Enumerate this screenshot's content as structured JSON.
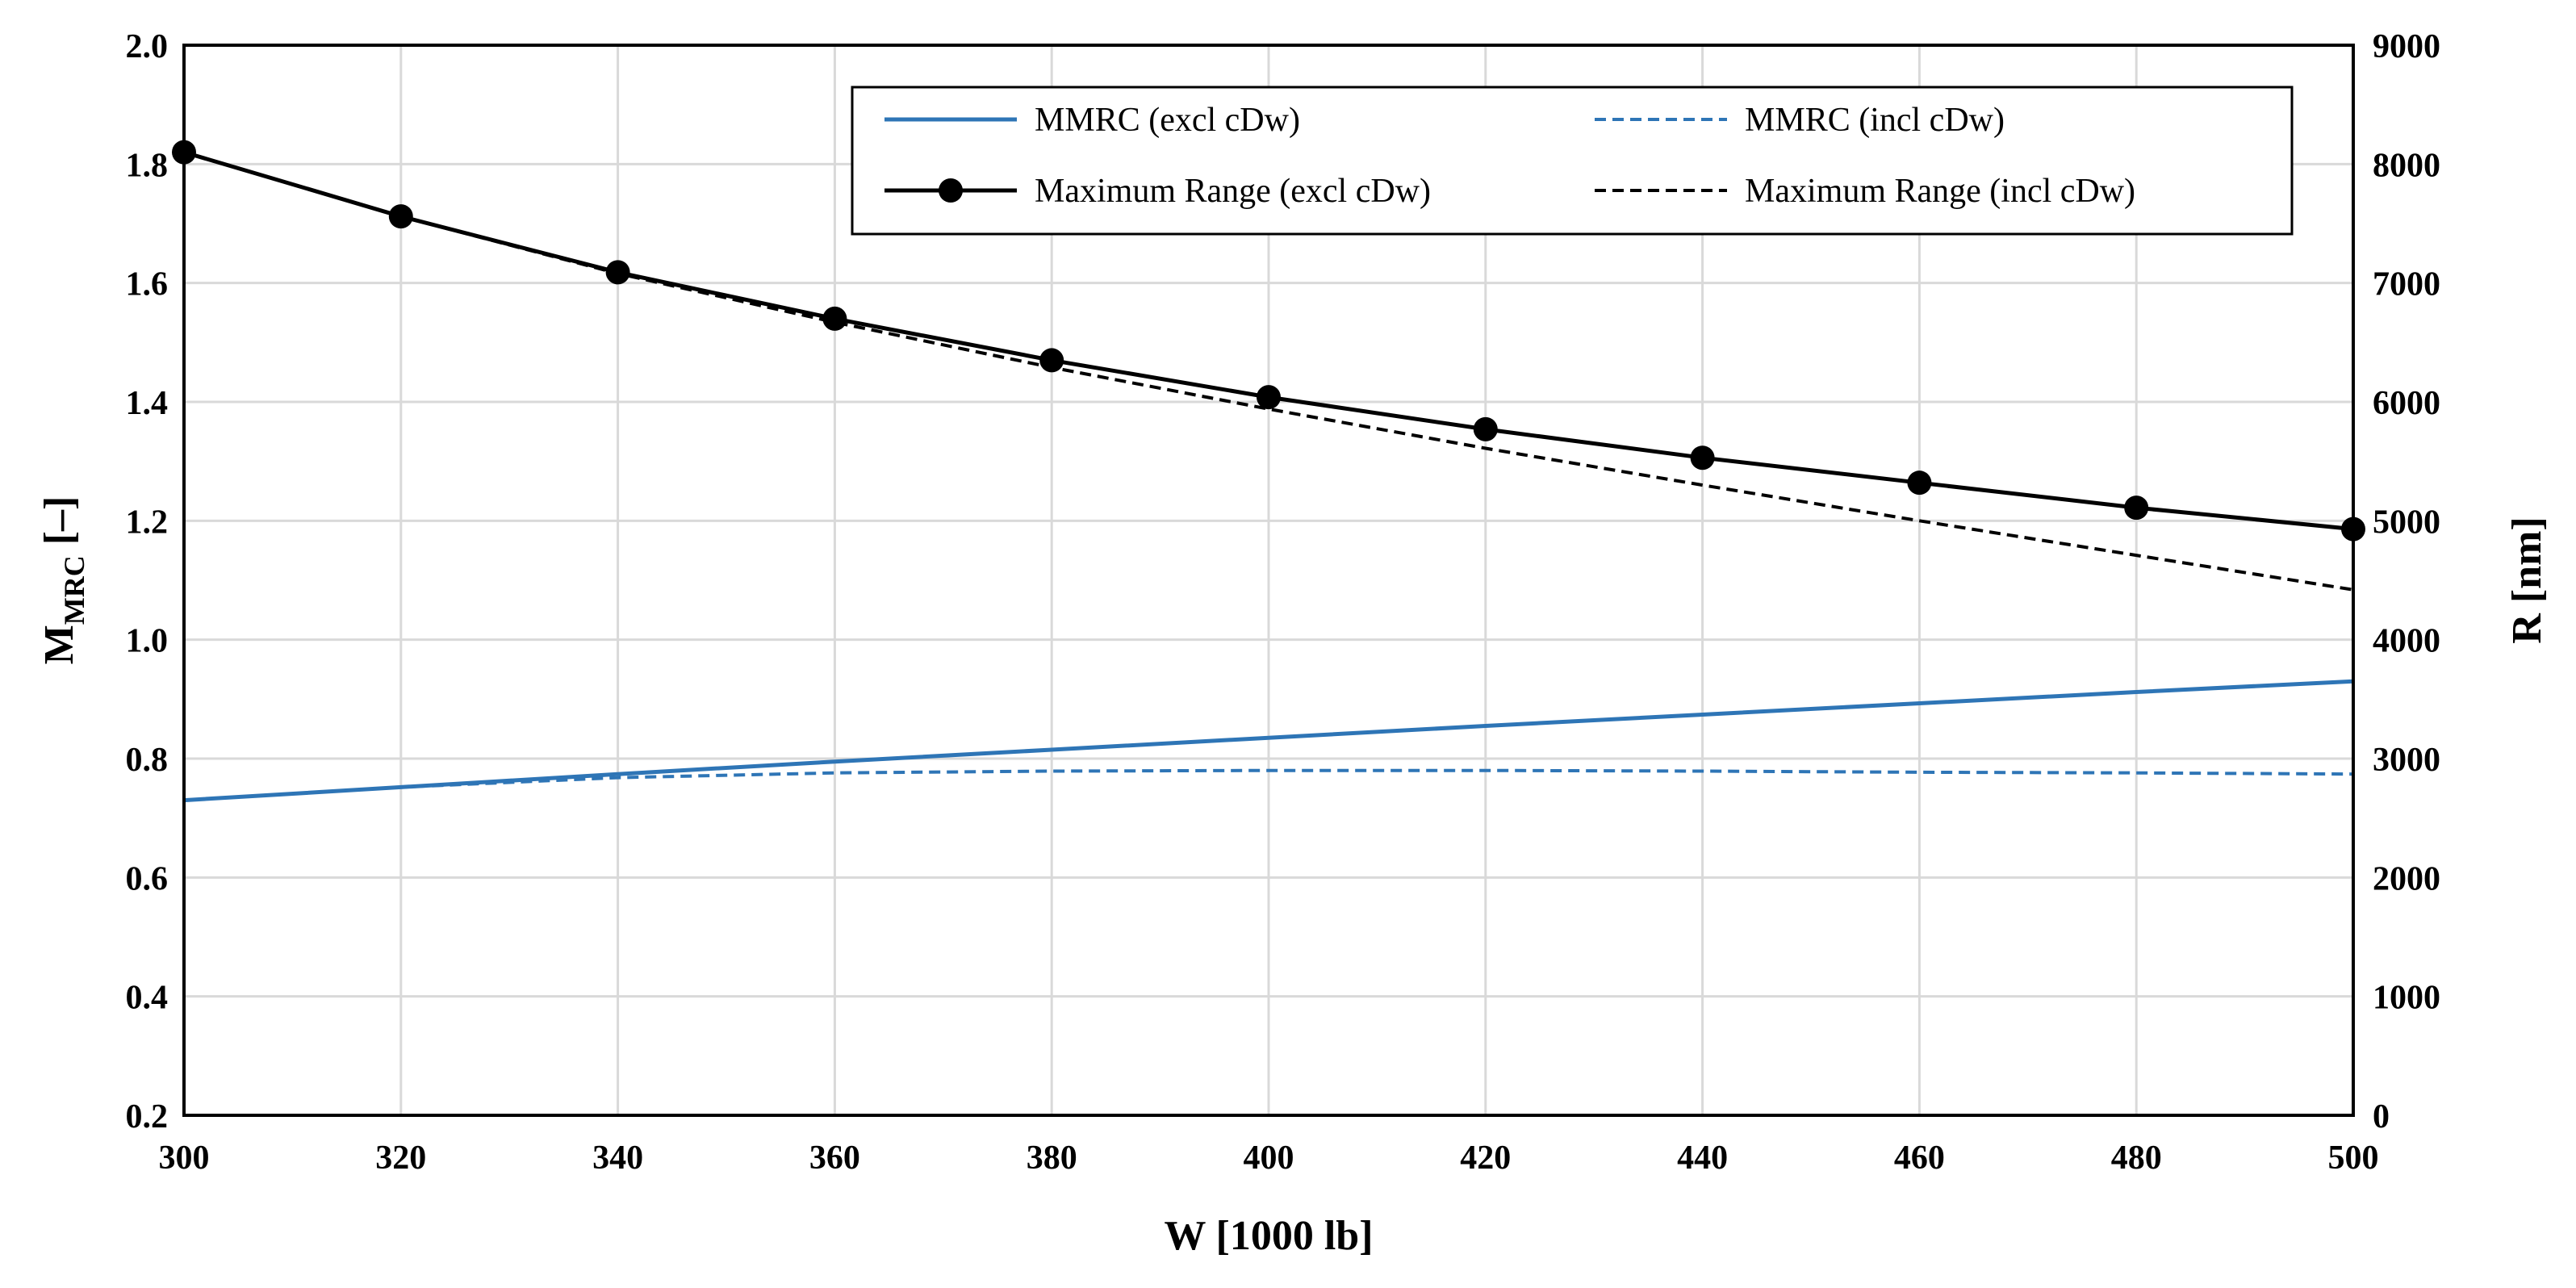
{
  "chart_data": {
    "type": "line",
    "title": "",
    "xlabel": "W [1000 lb]",
    "ylabel_left": {
      "main": "M",
      "sub": "MRC",
      "unit": " [–]"
    },
    "ylabel_right": "R [nm]",
    "xlim": [
      300,
      500
    ],
    "ylim_left": [
      0.2,
      2.0
    ],
    "ylim_right": [
      0,
      9000
    ],
    "grid": true,
    "legend_position": "top-right",
    "x_ticks": [
      300,
      320,
      340,
      360,
      380,
      400,
      420,
      440,
      460,
      480,
      500
    ],
    "y_left_ticks": [
      "0.2",
      "0.4",
      "0.6",
      "0.8",
      "1.0",
      "1.2",
      "1.4",
      "1.6",
      "1.8",
      "2.0"
    ],
    "y_right_ticks": [
      "0",
      "1000",
      "2000",
      "3000",
      "4000",
      "5000",
      "6000",
      "7000",
      "8000",
      "9000"
    ],
    "x": [
      300,
      320,
      340,
      360,
      380,
      400,
      420,
      440,
      460,
      480,
      500
    ],
    "series": [
      {
        "name": "MMRC (excl cDw)",
        "axis": "left",
        "color": "#2E75B6",
        "style": "solid",
        "marker": "none",
        "values": [
          0.73,
          0.752,
          0.774,
          0.795,
          0.815,
          0.835,
          0.855,
          0.874,
          0.893,
          0.912,
          0.93
        ]
      },
      {
        "name": "MMRC (incl cDw)",
        "axis": "left",
        "color": "#2E75B6",
        "style": "dashed",
        "marker": "none",
        "values": [
          0.73,
          0.752,
          0.768,
          0.776,
          0.779,
          0.78,
          0.78,
          0.779,
          0.777,
          0.776,
          0.774
        ]
      },
      {
        "name": "Maximum Range (excl cDw)",
        "axis": "right",
        "color": "#000000",
        "style": "solid",
        "marker": "circle",
        "values": [
          8100,
          7560,
          7090,
          6700,
          6350,
          6040,
          5770,
          5530,
          5320,
          5110,
          4930
        ]
      },
      {
        "name": "Maximum Range (incl cDw)",
        "axis": "right",
        "color": "#000000",
        "style": "dashed",
        "marker": "none",
        "values": [
          8100,
          7560,
          7080,
          6670,
          6290,
          5940,
          5610,
          5300,
          5000,
          4710,
          4420
        ]
      }
    ]
  }
}
